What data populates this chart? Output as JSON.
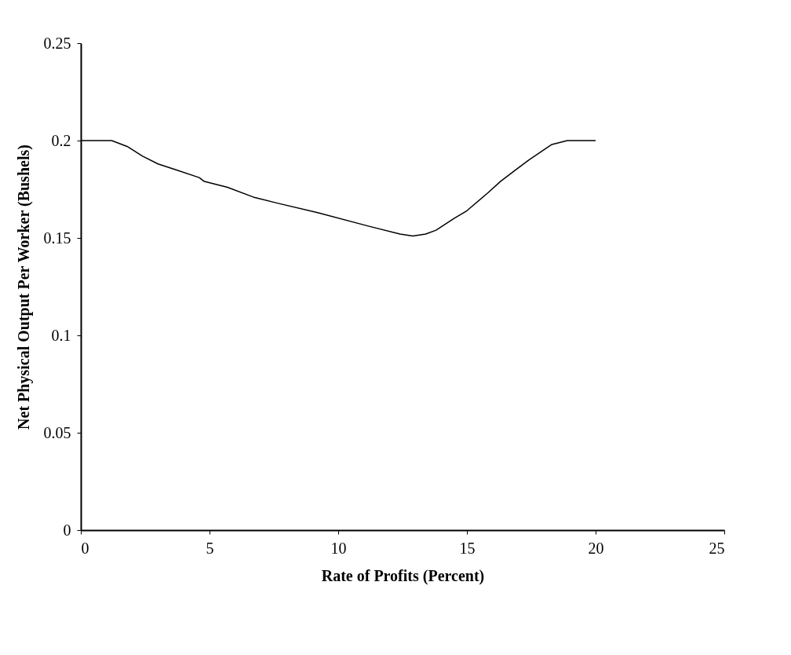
{
  "chart_data": {
    "type": "line",
    "xlabel": "Rate of Profits (Percent)",
    "ylabel": "Net Physical Output Per Worker (Bushels)",
    "x": [
      0,
      1.2,
      1.8,
      2.4,
      3.0,
      3.7,
      4.6,
      4.8,
      5.7,
      6.7,
      7.6,
      9.2,
      11.2,
      12.4,
      12.9,
      13.4,
      13.8,
      14.5,
      15.0,
      15.8,
      16.3,
      16.8,
      17.4,
      18.3,
      18.9,
      20.0
    ],
    "series": [
      {
        "color": "#000000",
        "values": [
          0.2,
          0.2,
          0.197,
          0.192,
          0.188,
          0.185,
          0.181,
          0.179,
          0.176,
          0.171,
          0.168,
          0.163,
          0.156,
          0.152,
          0.151,
          0.152,
          0.154,
          0.16,
          0.164,
          0.173,
          0.179,
          0.184,
          0.19,
          0.198,
          0.2,
          0.2
        ]
      }
    ],
    "xlim": [
      0,
      25
    ],
    "xticks": [
      0,
      5,
      10,
      15,
      20,
      25
    ],
    "ylim": [
      0,
      0.25
    ],
    "yticks": [
      0,
      0.05,
      0.1,
      0.15,
      0.2,
      0.25
    ],
    "grid": false,
    "legend": false,
    "marker": "none",
    "line_style": "solid"
  }
}
